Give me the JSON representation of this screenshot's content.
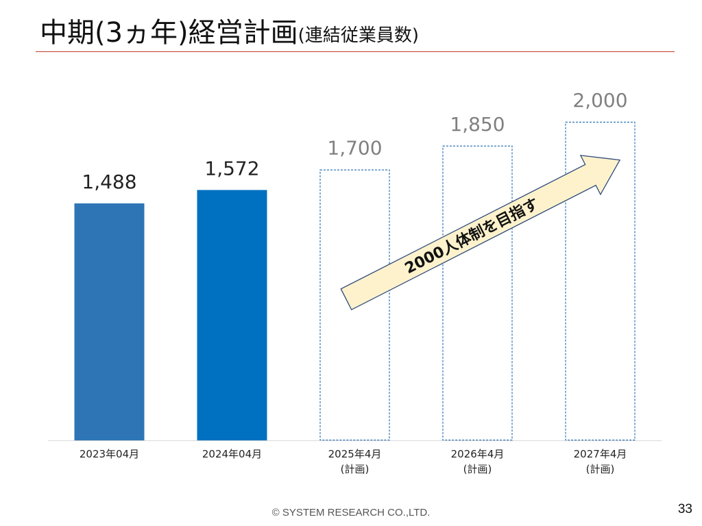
{
  "slide": {
    "title": "中期(3ヵ年)経営計画",
    "subtitle": "(連結従業員数)",
    "footer": "© SYSTEM RESEARCH CO.,LTD.",
    "page_number": "33"
  },
  "chart_data": {
    "type": "bar",
    "title": "",
    "xlabel": "",
    "ylabel": "",
    "ylim": [
      0,
      2150
    ],
    "grid": false,
    "categories": [
      [
        "2023年04月"
      ],
      [
        "2024年04月"
      ],
      [
        "2025年4月",
        "(計画)"
      ],
      [
        "2026年4月",
        "(計画)"
      ],
      [
        "2027年4月",
        "(計画)"
      ]
    ],
    "values": [
      1488,
      1572,
      1700,
      1850,
      2000
    ],
    "value_labels": [
      "1,488",
      "1,572",
      "1,700",
      "1,850",
      "2,000"
    ],
    "bar_styles": [
      "solid",
      "solid",
      "dashed-outline",
      "dashed-outline",
      "dashed-outline"
    ],
    "bar_colors": [
      "#2e75b6",
      "#0070c0",
      "#2e75b6",
      "#2e75b6",
      "#2e75b6"
    ],
    "value_label_colors": [
      "#222222",
      "#222222",
      "#808080",
      "#808080",
      "#808080"
    ],
    "annotation": {
      "text": "2000人体制を目指す",
      "shape": "arrow",
      "fill": "#fdf2cc",
      "border": "#2e4a7a"
    }
  }
}
